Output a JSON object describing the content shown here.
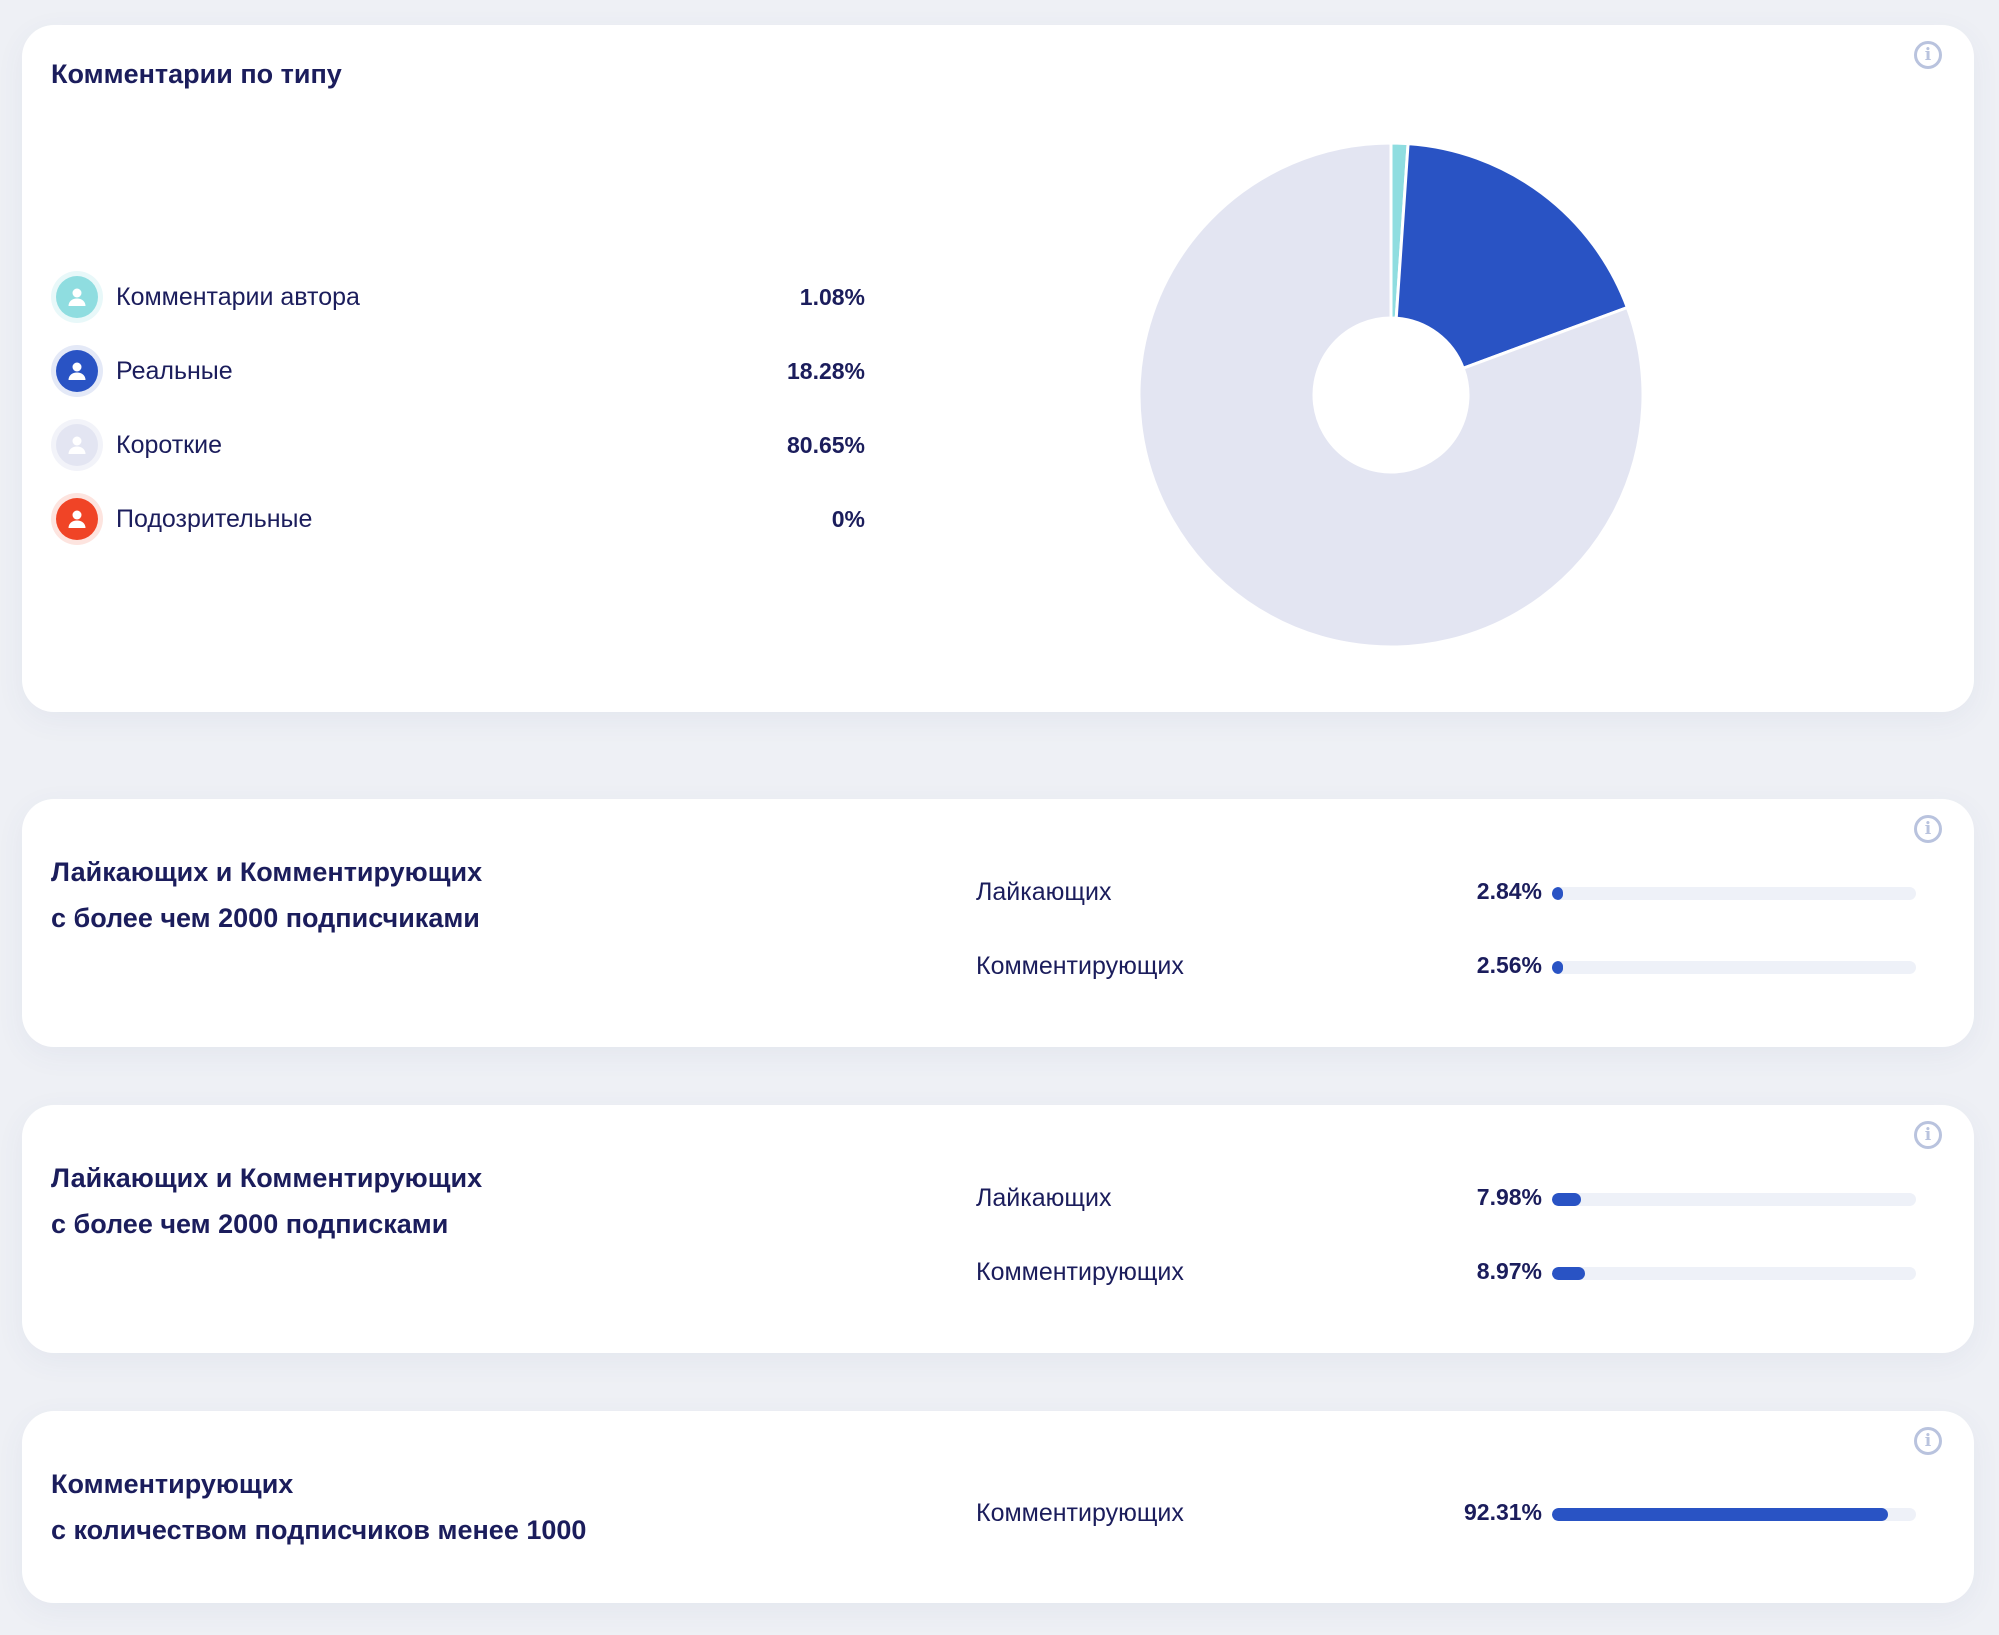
{
  "comments_by_type": {
    "title": "Комментарии по типу",
    "legend": [
      {
        "label": "Комментарии автора",
        "value": "1.08%",
        "color": "#8fdde0",
        "bg": "#e8f8f9"
      },
      {
        "label": "Реальные",
        "value": "18.28%",
        "color": "#2953c4",
        "bg": "#e4e9f7"
      },
      {
        "label": "Короткие",
        "value": "80.65%",
        "color": "#e3e5f2",
        "bg": "#f2f3f9"
      },
      {
        "label": "Подозрительные",
        "value": "0%",
        "color": "#f04426",
        "bg": "#fde4df"
      }
    ],
    "icon": "user-icon",
    "info_icon": "info-icon"
  },
  "chart_data": {
    "type": "pie",
    "donut": true,
    "categories": [
      "Комментарии автора",
      "Реальные",
      "Короткие",
      "Подозрительные"
    ],
    "values": [
      1.08,
      18.28,
      80.65,
      0
    ],
    "colors": [
      "#8fdde0",
      "#2953c4",
      "#e3e5f2",
      "#f04426"
    ]
  },
  "followers_block": {
    "title_line1": "Лайкающих и Комментирующих",
    "title_line2": "с более чем 2000 подписчиками",
    "rows": [
      {
        "label": "Лайкающих",
        "value": "2.84%",
        "fraction": 0.0284
      },
      {
        "label": "Комментирующих",
        "value": "2.56%",
        "fraction": 0.0256
      }
    ]
  },
  "following_block": {
    "title_line1": "Лайкающих и Комментирующих",
    "title_line2": "с более чем 2000 подписками",
    "rows": [
      {
        "label": "Лайкающих",
        "value": "7.98%",
        "fraction": 0.0798
      },
      {
        "label": "Комментирующих",
        "value": "8.97%",
        "fraction": 0.0897
      }
    ]
  },
  "small_followers_block": {
    "title_line1": "Комментирующих",
    "title_line2": "с количеством подписчиков менее 1000",
    "rows": [
      {
        "label": "Комментирующих",
        "value": "92.31%",
        "fraction": 0.9231
      }
    ]
  },
  "bar_color": "#2953c4",
  "track_color": "#eef1f8"
}
